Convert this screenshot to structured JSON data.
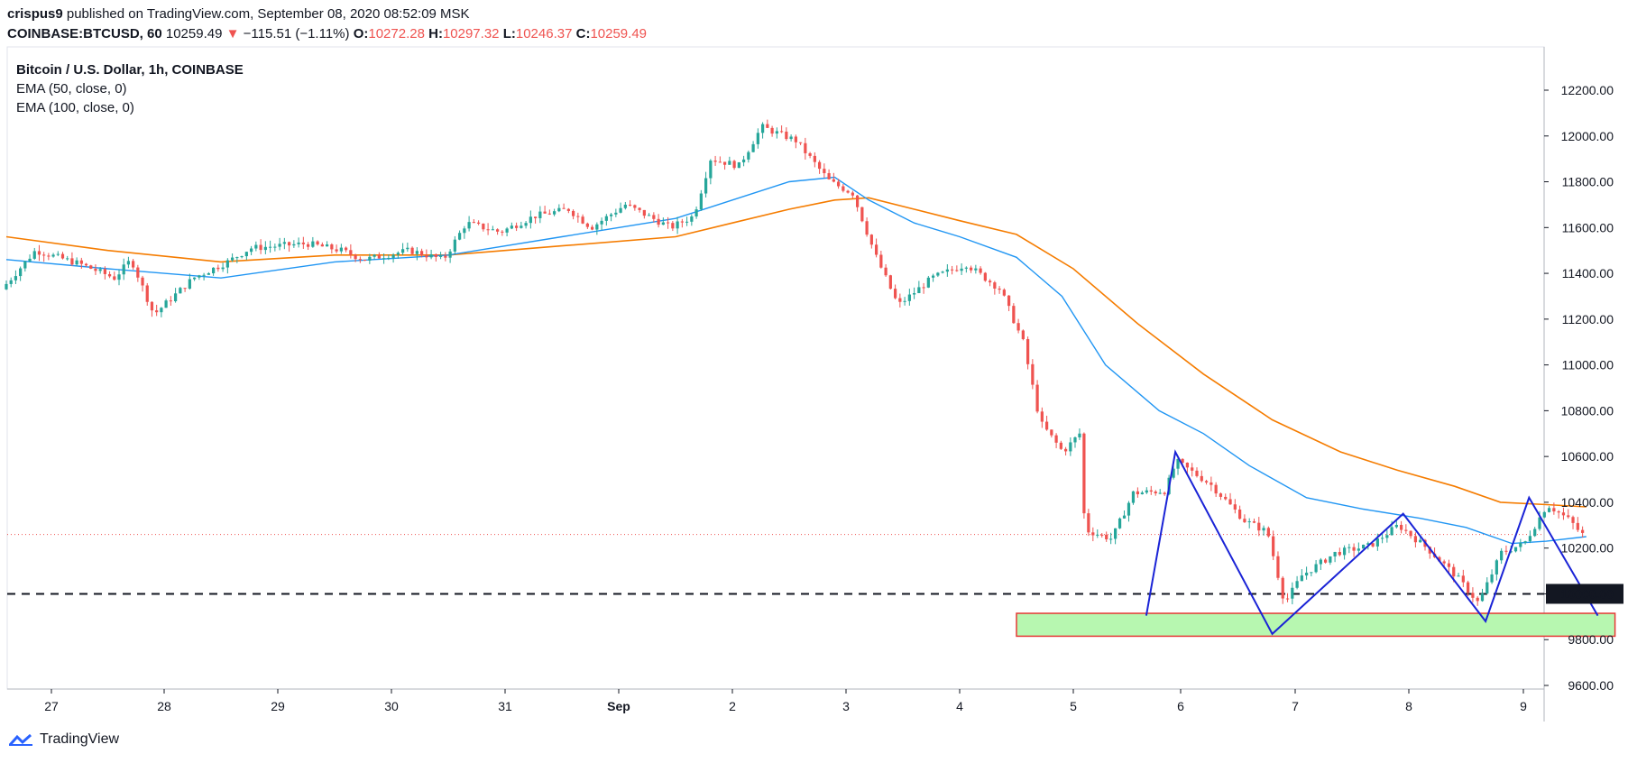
{
  "header": {
    "user": "crispus9",
    "published": "published on TradingView.com, September 08, 2020 08:52:09 MSK",
    "symbol": "COINBASE:BTCUSD, 60",
    "last": "10259.49",
    "arrow": "▼",
    "change": "−115.51 (−1.11%)",
    "o_label": "O:",
    "o": "10272.28",
    "h_label": "H:",
    "h": "10297.32",
    "l_label": "L:",
    "l": "10246.37",
    "c_label": "C:",
    "c": "10259.49"
  },
  "legend": {
    "title": "Bitcoin / U.S. Dollar, 1h, COINBASE",
    "ema50": "EMA (50, close, 0)",
    "ema100": "EMA (100, close, 0)"
  },
  "brand": {
    "name": "TradingView"
  },
  "colors": {
    "up": "#26a69a",
    "down": "#ef5350",
    "ema50": "#2196f3",
    "ema100": "#f57c00",
    "pattern": "#1a23d6",
    "zone": "#b7f7b0",
    "zone_border": "#e53935"
  },
  "chart_data": {
    "type": "candlestick",
    "interval": "1h",
    "x_ticks": [
      "27",
      "28",
      "29",
      "30",
      "31",
      "Sep",
      "2",
      "3",
      "4",
      "5",
      "6",
      "7",
      "8",
      "9"
    ],
    "y_ticks": [
      "12200.00",
      "12000.00",
      "11800.00",
      "11600.00",
      "11400.00",
      "11200.00",
      "11000.00",
      "10800.00",
      "10600.00",
      "10400.00",
      "10200.00",
      "10000.00",
      "9800.00",
      "9600.00"
    ],
    "ylim": [
      9580,
      12320
    ],
    "xlim_days": [
      26.6,
      40.0
    ],
    "price_series": [
      {
        "day": 26.6,
        "p": 11330
      },
      {
        "day": 26.9,
        "p": 11500
      },
      {
        "day": 27.3,
        "p": 11440
      },
      {
        "day": 27.6,
        "p": 11380
      },
      {
        "day": 27.75,
        "p": 11460
      },
      {
        "day": 27.95,
        "p": 11220
      },
      {
        "day": 28.3,
        "p": 11380
      },
      {
        "day": 28.6,
        "p": 11450
      },
      {
        "day": 28.8,
        "p": 11510
      },
      {
        "day": 29.3,
        "p": 11530
      },
      {
        "day": 29.6,
        "p": 11500
      },
      {
        "day": 29.8,
        "p": 11460
      },
      {
        "day": 30.2,
        "p": 11500
      },
      {
        "day": 30.5,
        "p": 11460
      },
      {
        "day": 30.7,
        "p": 11620
      },
      {
        "day": 31.0,
        "p": 11580
      },
      {
        "day": 31.3,
        "p": 11650
      },
      {
        "day": 31.6,
        "p": 11680
      },
      {
        "day": 31.8,
        "p": 11600
      },
      {
        "day": 32.1,
        "p": 11700
      },
      {
        "day": 32.5,
        "p": 11600
      },
      {
        "day": 32.7,
        "p": 11650
      },
      {
        "day": 32.85,
        "p": 11900
      },
      {
        "day": 33.1,
        "p": 11870
      },
      {
        "day": 33.3,
        "p": 12040
      },
      {
        "day": 33.6,
        "p": 11980
      },
      {
        "day": 33.9,
        "p": 11800
      },
      {
        "day": 34.1,
        "p": 11750
      },
      {
        "day": 34.3,
        "p": 11480
      },
      {
        "day": 34.5,
        "p": 11260
      },
      {
        "day": 34.8,
        "p": 11380
      },
      {
        "day": 35.1,
        "p": 11440
      },
      {
        "day": 35.4,
        "p": 11330
      },
      {
        "day": 35.6,
        "p": 11100
      },
      {
        "day": 35.75,
        "p": 10750
      },
      {
        "day": 35.95,
        "p": 10620
      },
      {
        "day": 36.1,
        "p": 10700
      },
      {
        "day": 36.15,
        "p": 10280
      },
      {
        "day": 36.4,
        "p": 10240
      },
      {
        "day": 36.6,
        "p": 10440
      },
      {
        "day": 36.9,
        "p": 10450
      },
      {
        "day": 37.0,
        "p": 10580
      },
      {
        "day": 37.3,
        "p": 10480
      },
      {
        "day": 37.6,
        "p": 10320
      },
      {
        "day": 37.8,
        "p": 10270
      },
      {
        "day": 37.95,
        "p": 9960
      },
      {
        "day": 38.1,
        "p": 10080
      },
      {
        "day": 38.4,
        "p": 10180
      },
      {
        "day": 38.7,
        "p": 10210
      },
      {
        "day": 38.95,
        "p": 10300
      },
      {
        "day": 39.2,
        "p": 10200
      },
      {
        "day": 39.45,
        "p": 10080
      },
      {
        "day": 39.65,
        "p": 9960
      },
      {
        "day": 39.85,
        "p": 10180
      },
      {
        "day": 40.05,
        "p": 10220
      },
      {
        "day": 40.25,
        "p": 10390
      },
      {
        "day": 40.45,
        "p": 10320
      },
      {
        "day": 40.55,
        "p": 10260
      }
    ],
    "ema50": [
      {
        "day": 26.6,
        "p": 11460
      },
      {
        "day": 27.5,
        "p": 11420
      },
      {
        "day": 28.5,
        "p": 11380
      },
      {
        "day": 29.5,
        "p": 11450
      },
      {
        "day": 30.5,
        "p": 11480
      },
      {
        "day": 31.5,
        "p": 11560
      },
      {
        "day": 32.5,
        "p": 11640
      },
      {
        "day": 33.0,
        "p": 11720
      },
      {
        "day": 33.5,
        "p": 11800
      },
      {
        "day": 33.9,
        "p": 11820
      },
      {
        "day": 34.2,
        "p": 11720
      },
      {
        "day": 34.6,
        "p": 11620
      },
      {
        "day": 35.0,
        "p": 11560
      },
      {
        "day": 35.5,
        "p": 11470
      },
      {
        "day": 35.9,
        "p": 11300
      },
      {
        "day": 36.3,
        "p": 11000
      },
      {
        "day": 36.8,
        "p": 10800
      },
      {
        "day": 37.2,
        "p": 10700
      },
      {
        "day": 37.6,
        "p": 10560
      },
      {
        "day": 38.1,
        "p": 10420
      },
      {
        "day": 38.6,
        "p": 10370
      },
      {
        "day": 39.1,
        "p": 10330
      },
      {
        "day": 39.5,
        "p": 10290
      },
      {
        "day": 39.9,
        "p": 10220
      },
      {
        "day": 40.2,
        "p": 10230
      },
      {
        "day": 40.55,
        "p": 10250
      }
    ],
    "ema100": [
      {
        "day": 26.6,
        "p": 11560
      },
      {
        "day": 27.5,
        "p": 11500
      },
      {
        "day": 28.5,
        "p": 11450
      },
      {
        "day": 29.5,
        "p": 11480
      },
      {
        "day": 30.5,
        "p": 11480
      },
      {
        "day": 31.5,
        "p": 11520
      },
      {
        "day": 32.5,
        "p": 11560
      },
      {
        "day": 33.0,
        "p": 11620
      },
      {
        "day": 33.5,
        "p": 11680
      },
      {
        "day": 33.9,
        "p": 11720
      },
      {
        "day": 34.2,
        "p": 11730
      },
      {
        "day": 34.6,
        "p": 11680
      },
      {
        "day": 35.0,
        "p": 11630
      },
      {
        "day": 35.5,
        "p": 11570
      },
      {
        "day": 36.0,
        "p": 11420
      },
      {
        "day": 36.6,
        "p": 11180
      },
      {
        "day": 37.2,
        "p": 10960
      },
      {
        "day": 37.8,
        "p": 10760
      },
      {
        "day": 38.4,
        "p": 10620
      },
      {
        "day": 38.9,
        "p": 10540
      },
      {
        "day": 39.4,
        "p": 10470
      },
      {
        "day": 39.8,
        "p": 10400
      },
      {
        "day": 40.2,
        "p": 10390
      },
      {
        "day": 40.55,
        "p": 10380
      }
    ],
    "support_level": 10000,
    "last_price": 10259.49,
    "demand_zone": {
      "from_day": 35.5,
      "to_day": 40.8,
      "low": 9815,
      "high": 9915
    },
    "pattern_lines": [
      {
        "day": 36.68,
        "p": 9905
      },
      {
        "day": 36.95,
        "p": 10620
      },
      {
        "day": 37.8,
        "p": 9825
      },
      {
        "day": 38.95,
        "p": 10350
      },
      {
        "day": 39.67,
        "p": 9880
      },
      {
        "day": 40.05,
        "p": 10420
      },
      {
        "day": 40.65,
        "p": 9905
      }
    ]
  }
}
